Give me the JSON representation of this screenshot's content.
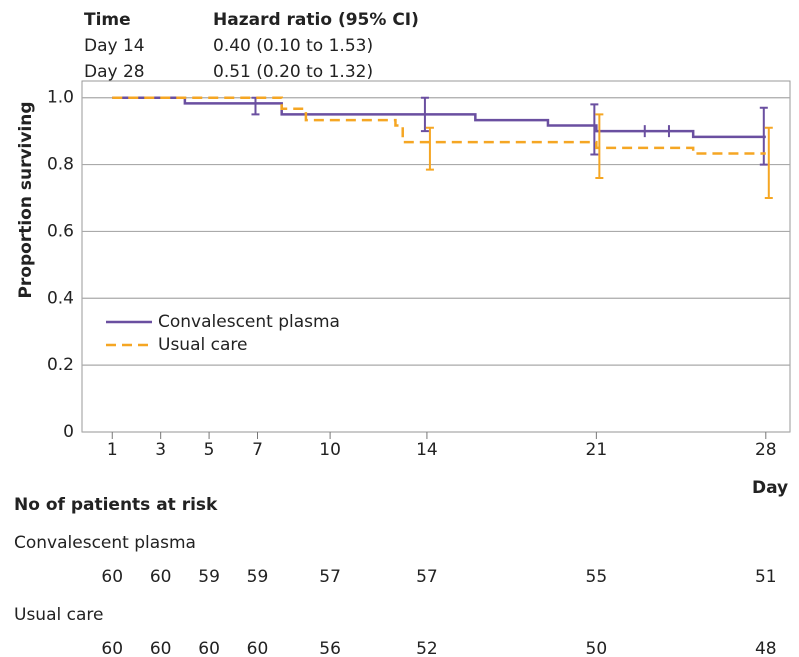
{
  "chart_data": {
    "type": "step",
    "hr_table": {
      "header": [
        "Time",
        "Hazard ratio (95% CI)"
      ],
      "rows": [
        [
          "Day 14",
          "0.40 (0.10 to 1.53)"
        ],
        [
          "Day 28",
          "0.51 (0.20 to 1.32)"
        ]
      ]
    },
    "ylabel": "Proportion surviving",
    "xlabel": "Day",
    "xlim": [
      -0.25,
      29
    ],
    "ylim": [
      0,
      1.05
    ],
    "xticks": [
      1,
      3,
      5,
      7,
      10,
      14,
      21,
      28
    ],
    "yticks": [
      0,
      0.2,
      0.4,
      0.6,
      0.8,
      {
        "value": 1,
        "label": "1.0"
      }
    ],
    "grid": true,
    "legend": "lower-left",
    "series": [
      {
        "name": "Convalescent plasma",
        "color": "#6a4fa0",
        "dashed": false,
        "x": [
          1,
          4,
          8,
          16,
          19,
          21,
          25,
          28
        ],
        "values": [
          1.0,
          0.983,
          0.95,
          0.933,
          0.917,
          0.9,
          0.883,
          0.883
        ],
        "censored": [
          23,
          24
        ],
        "error_bars": [
          {
            "x": 7,
            "lower": 0.95,
            "upper": 1.0
          },
          {
            "x": 14,
            "lower": 0.9,
            "upper": 1.0
          },
          {
            "x": 21,
            "lower": 0.83,
            "upper": 0.98
          },
          {
            "x": 28,
            "lower": 0.8,
            "upper": 0.97
          }
        ]
      },
      {
        "name": "Usual care",
        "color": "#f5a623",
        "dashed": true,
        "x": [
          1,
          8,
          9,
          12.7,
          13,
          21,
          25,
          28
        ],
        "values": [
          1.0,
          0.967,
          0.933,
          0.917,
          0.867,
          0.85,
          0.833,
          0.833
        ],
        "censored": [],
        "error_bars": [
          {
            "x": 14,
            "lower": 0.785,
            "upper": 0.91
          },
          {
            "x": 21,
            "lower": 0.76,
            "upper": 0.95
          },
          {
            "x": 28,
            "lower": 0.7,
            "upper": 0.91
          }
        ]
      }
    ],
    "risk_table": {
      "title": "No of patients at risk",
      "rows": [
        {
          "name": "Convalescent plasma",
          "values": [
            60,
            60,
            59,
            59,
            57,
            57,
            55,
            51
          ]
        },
        {
          "name": "Usual care",
          "values": [
            60,
            60,
            60,
            60,
            56,
            52,
            50,
            48
          ]
        }
      ]
    }
  }
}
